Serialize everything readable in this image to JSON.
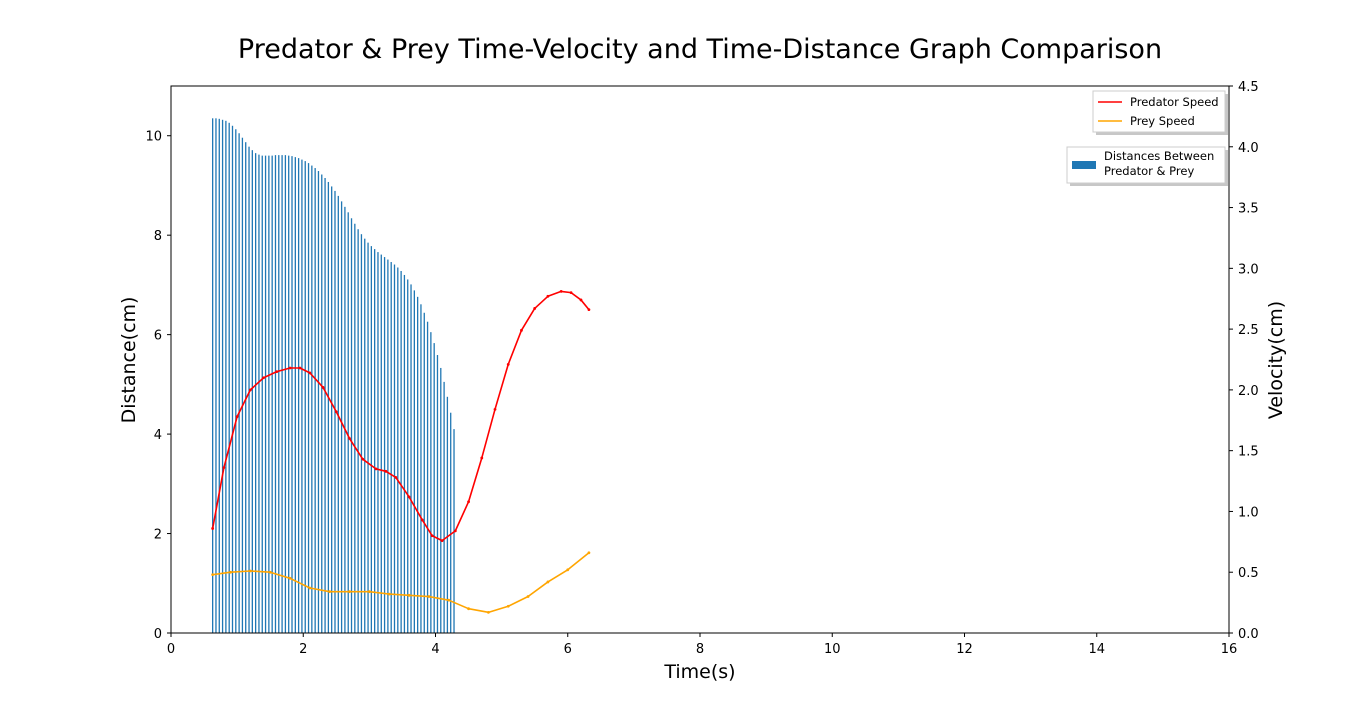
{
  "chart_data": {
    "type": "bar+line",
    "title": "Predator & Prey Time-Velocity and Time-Distance Graph Comparison",
    "xlabel": "Time(s)",
    "ylabel_left": "Distance(cm)",
    "ylabel_right": "Velocity(cm)",
    "xlim": [
      0,
      16
    ],
    "ylim_left": [
      0,
      11
    ],
    "ylim_right": [
      0,
      4.5
    ],
    "xticks": [
      0,
      2,
      4,
      6,
      8,
      10,
      12,
      14,
      16
    ],
    "yticks_left": [
      0,
      2,
      4,
      6,
      8,
      10
    ],
    "yticks_right": [
      0.0,
      0.5,
      1.0,
      1.5,
      2.0,
      2.5,
      3.0,
      3.5,
      4.0,
      4.5
    ],
    "yticks_right_labels": [
      "0.0",
      "0.5",
      "1.0",
      "1.5",
      "2.0",
      "2.5",
      "3.0",
      "3.5",
      "4.0",
      "4.5"
    ],
    "bar_series": {
      "name": "Distances Between Predator & Prey",
      "color": "#1f77b4",
      "x_start": 0.63,
      "x_step": 0.05,
      "values": [
        10.35,
        10.35,
        10.34,
        10.32,
        10.3,
        10.26,
        10.2,
        10.13,
        10.05,
        9.96,
        9.87,
        9.78,
        9.71,
        9.65,
        9.62,
        9.6,
        9.6,
        9.6,
        9.6,
        9.61,
        9.61,
        9.61,
        9.61,
        9.6,
        9.59,
        9.57,
        9.55,
        9.52,
        9.49,
        9.45,
        9.4,
        9.35,
        9.29,
        9.22,
        9.15,
        9.07,
        8.98,
        8.89,
        8.79,
        8.68,
        8.57,
        8.46,
        8.34,
        8.23,
        8.12,
        8.02,
        7.93,
        7.85,
        7.78,
        7.72,
        7.66,
        7.61,
        7.56,
        7.51,
        7.46,
        7.41,
        7.35,
        7.28,
        7.2,
        7.11,
        7.01,
        6.89,
        6.76,
        6.61,
        6.44,
        6.26,
        6.05,
        5.83,
        5.59,
        5.33,
        5.05,
        4.75,
        4.43,
        4.1
      ]
    },
    "line_series": [
      {
        "name": "Predator Speed",
        "color": "#ff0000",
        "x": [
          0.63,
          0.8,
          1.0,
          1.2,
          1.4,
          1.6,
          1.8,
          1.95,
          2.1,
          2.3,
          2.5,
          2.7,
          2.9,
          3.1,
          3.25,
          3.4,
          3.6,
          3.8,
          3.95,
          4.1,
          4.3,
          4.5,
          4.7,
          4.9,
          5.1,
          5.3,
          5.5,
          5.7,
          5.9,
          6.05,
          6.2,
          6.32
        ],
        "y": [
          0.86,
          1.36,
          1.78,
          2.0,
          2.1,
          2.15,
          2.18,
          2.18,
          2.14,
          2.02,
          1.82,
          1.6,
          1.43,
          1.35,
          1.33,
          1.28,
          1.12,
          0.93,
          0.8,
          0.76,
          0.84,
          1.08,
          1.44,
          1.84,
          2.21,
          2.49,
          2.67,
          2.77,
          2.81,
          2.8,
          2.74,
          2.66
        ]
      },
      {
        "name": "Prey Speed",
        "color": "#ffa500",
        "x": [
          0.63,
          0.9,
          1.2,
          1.5,
          1.8,
          2.1,
          2.4,
          2.7,
          3.0,
          3.3,
          3.6,
          3.9,
          4.2,
          4.5,
          4.8,
          5.1,
          5.4,
          5.7,
          6.0,
          6.32
        ],
        "y": [
          0.48,
          0.5,
          0.51,
          0.5,
          0.45,
          0.37,
          0.34,
          0.34,
          0.34,
          0.32,
          0.31,
          0.3,
          0.27,
          0.2,
          0.17,
          0.22,
          0.3,
          0.42,
          0.52,
          0.66
        ]
      }
    ],
    "legends": [
      {
        "placement": "top-right",
        "entries": [
          "Predator Speed",
          "Prey Speed"
        ]
      },
      {
        "placement": "top-right-below",
        "entries": [
          "Distances Between\nPredator & Prey"
        ]
      }
    ],
    "grid": false
  }
}
